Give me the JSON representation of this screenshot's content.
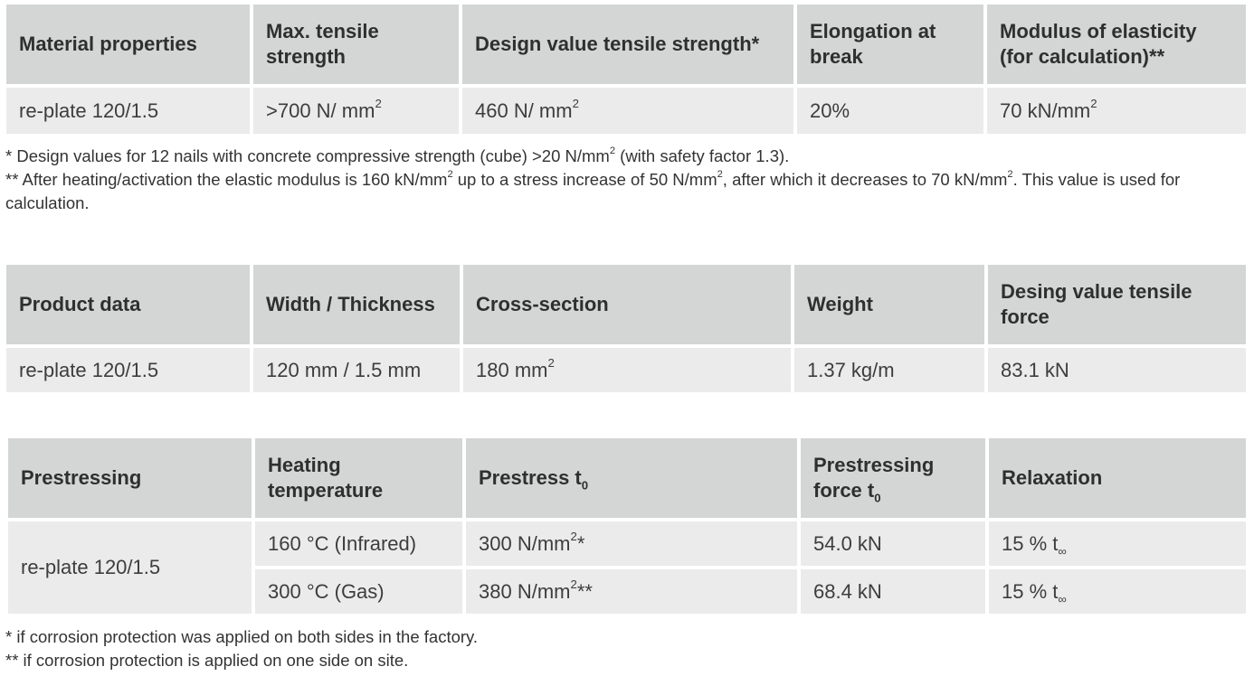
{
  "material_table": {
    "headers": [
      "Material properties",
      "Max. tensile strength",
      "Design value tensile strength*",
      "Elongation at break",
      "Modulus of elasticity (for calculation)**"
    ],
    "row": {
      "name": "re-plate 120/1.5",
      "max_tensile_strength": ">700 N/ mm",
      "design_value": "460 N/ mm",
      "elongation": "20%",
      "modulus": "70 kN/mm"
    }
  },
  "material_notes": {
    "note1_a": "* Design values for 12 nails with concrete compressive strength (cube) >20 N/mm",
    "note1_b": " (with safety factor 1.3).",
    "note2_a": "** After heating/activation the elastic modulus is 160 kN/mm",
    "note2_b": " up to a stress increase of 50 N/mm",
    "note2_c": ", after which it decreases to 70 kN/mm",
    "note2_d": ". This value is used for calculation."
  },
  "superscript_2": "2",
  "product_table": {
    "headers": [
      "Product data",
      "Width / Thickness",
      "Cross-section",
      "Weight",
      "Desing value tensile force"
    ],
    "row": {
      "name": "re-plate 120/1.5",
      "width_thickness": "120 mm / 1.5 mm",
      "cross_section": "180 mm",
      "weight": "1.37 kg/m",
      "design_force": "83.1 kN"
    }
  },
  "prestress_table": {
    "headers": {
      "prestressing": "Prestressing",
      "heating_temperature": "Heating temperature",
      "prestress": "Prestress t",
      "prestressing_force": "Prestressing force t",
      "relaxation": "Relaxation",
      "subscript_zero": "0"
    },
    "product_name": "re-plate 120/1.5",
    "rows": [
      {
        "temperature": "160 °C (Infrared)",
        "prestress": "300 N/mm",
        "prestress_mark": "*",
        "force": "54.0 kN",
        "relaxation": "15 % t",
        "relaxation_sub": "∞"
      },
      {
        "temperature": "300 °C (Gas)",
        "prestress": "380 N/mm",
        "prestress_mark": "**",
        "force": "68.4 kN",
        "relaxation": "15 % t",
        "relaxation_sub": "∞"
      }
    ]
  },
  "prestress_notes": {
    "note1": "* if corrosion protection was applied on both sides in the factory.",
    "note2": "** if corrosion protection is applied on one side on site."
  }
}
